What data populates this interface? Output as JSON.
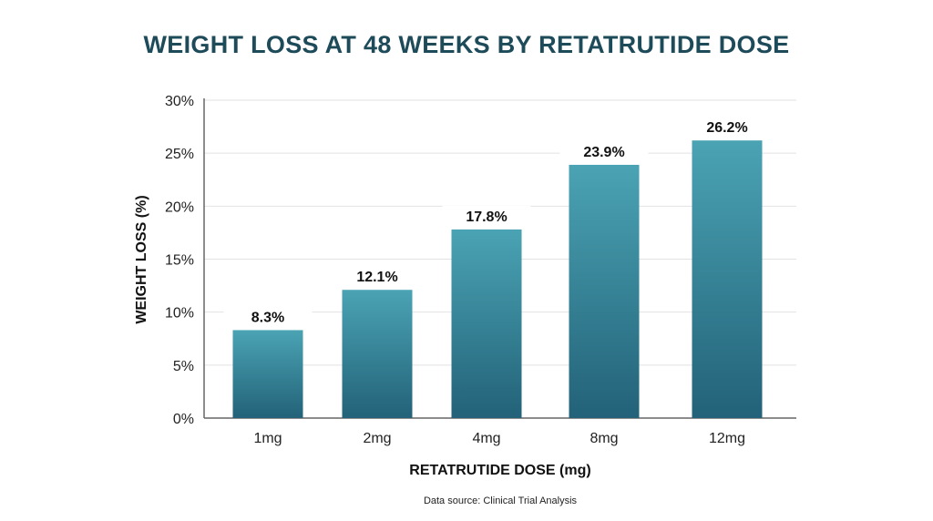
{
  "chart_data": {
    "type": "bar",
    "title": "WEIGHT LOSS AT 48 WEEKS BY RETATRUTIDE DOSE",
    "xlabel": "RETATRUTIDE DOSE (mg)",
    "ylabel": "WEIGHT LOSS (%)",
    "categories": [
      "1mg",
      "2mg",
      "4mg",
      "8mg",
      "12mg"
    ],
    "values": [
      8.3,
      12.1,
      17.8,
      23.9,
      26.2
    ],
    "data_labels": [
      "8.3%",
      "12.1%",
      "17.8%",
      "23.9%",
      "26.2%"
    ],
    "ylim": [
      0,
      30
    ],
    "yticks": [
      0,
      5,
      10,
      15,
      20,
      25,
      30
    ],
    "ytick_labels": [
      "0%",
      "5%",
      "10%",
      "15%",
      "20%",
      "25%",
      "30%"
    ],
    "grid": true,
    "colors": {
      "title": "#1e4b5a",
      "bar_top": "#4aa3b3",
      "bar_bottom": "#236279",
      "grid": "#e2e2e2",
      "axis": "#666666"
    }
  },
  "source": "Data source: Clinical Trial Analysis"
}
